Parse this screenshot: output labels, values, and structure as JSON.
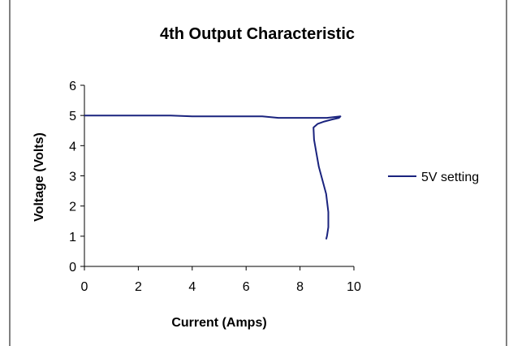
{
  "colors": {
    "series": "#1a237e",
    "axis": "#000000",
    "frame": "#000000",
    "background": "#ffffff"
  },
  "chart_data": {
    "type": "line",
    "title": "4th Output Characteristic",
    "xlabel": "Current (Amps)",
    "ylabel": "Voltage (Volts)",
    "xlim": [
      0,
      10
    ],
    "ylim": [
      0,
      6
    ],
    "xticks": [
      "0",
      "2",
      "4",
      "6",
      "8",
      "10"
    ],
    "yticks": [
      "0",
      "1",
      "2",
      "3",
      "4",
      "5",
      "6"
    ],
    "grid": false,
    "legend_position": "right",
    "series": [
      {
        "name": "5V setting",
        "color": "#1a237e",
        "points": [
          [
            0,
            5.0
          ],
          [
            3.2,
            5.0
          ],
          [
            4.0,
            4.97
          ],
          [
            6.6,
            4.97
          ],
          [
            7.2,
            4.92
          ],
          [
            9.0,
            4.92
          ],
          [
            9.3,
            4.95
          ],
          [
            9.5,
            4.97
          ],
          [
            9.45,
            4.92
          ],
          [
            9.2,
            4.87
          ],
          [
            8.9,
            4.8
          ],
          [
            8.65,
            4.72
          ],
          [
            8.5,
            4.6
          ],
          [
            8.52,
            4.2
          ],
          [
            8.6,
            3.8
          ],
          [
            8.7,
            3.3
          ],
          [
            8.85,
            2.8
          ],
          [
            8.97,
            2.4
          ],
          [
            9.05,
            1.8
          ],
          [
            9.05,
            1.3
          ],
          [
            9.0,
            1.0
          ],
          [
            8.97,
            0.9
          ]
        ]
      }
    ]
  }
}
